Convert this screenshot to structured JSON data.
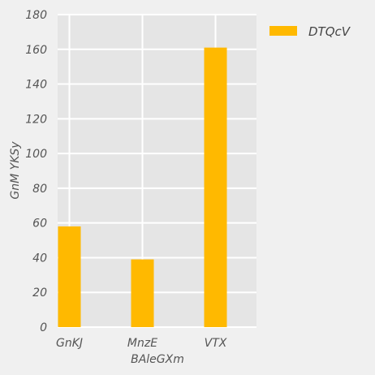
{
  "chart_data": {
    "type": "bar",
    "categories": [
      "GnKJ",
      "MnzE",
      "VTX"
    ],
    "series": [
      {
        "name": "DTQcV",
        "values": [
          58,
          39,
          161
        ],
        "color": "#ffb900"
      }
    ],
    "xlabel": "BAleGXm",
    "ylabel": "GnM YKSy",
    "ylim": [
      0,
      180
    ],
    "yticks": [
      0,
      20,
      40,
      60,
      80,
      100,
      120,
      140,
      160,
      180
    ],
    "grid": true,
    "legend_position": "outside-top-right",
    "colors": {
      "background": "#f0f0f0",
      "plot_background": "#e5e5e5",
      "grid": "#ffffff"
    }
  }
}
